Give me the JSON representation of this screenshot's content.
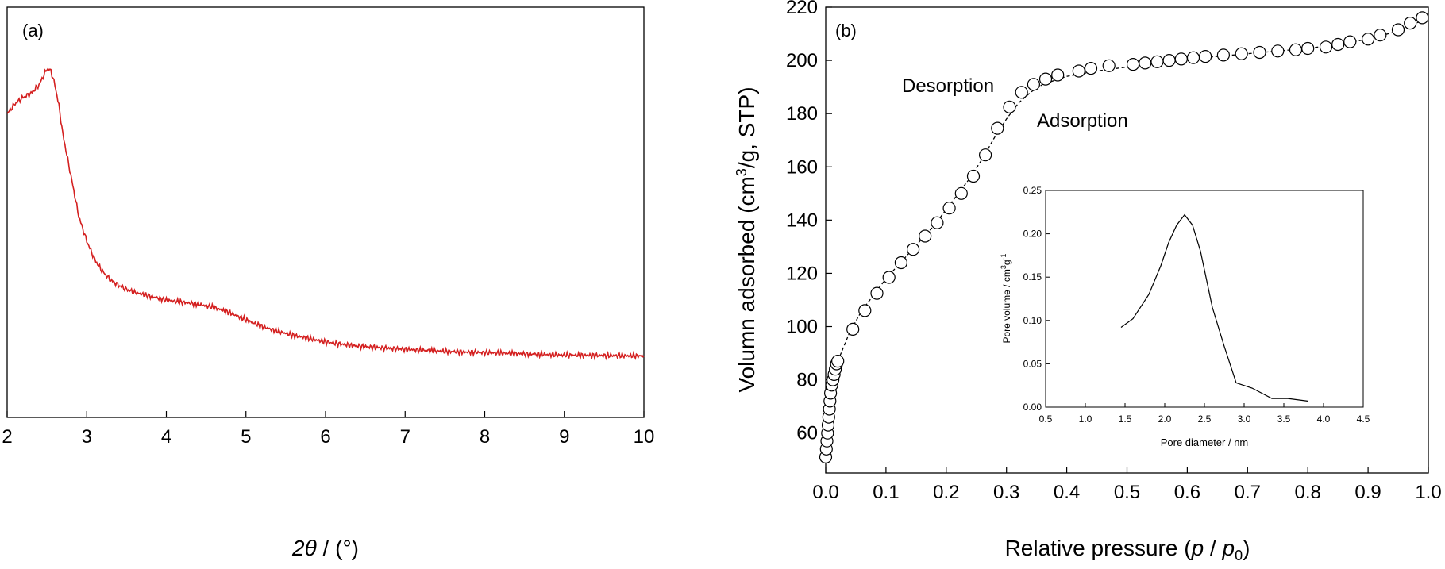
{
  "chart_data": [
    {
      "type": "line",
      "panel_label": "(a)",
      "xlabel_math": "2θ",
      "xlabel_text": " / (°)",
      "ylabel": "",
      "xlim": [
        2,
        10
      ],
      "x_ticks": [
        "2",
        "3",
        "4",
        "5",
        "6",
        "7",
        "8",
        "9",
        "10"
      ],
      "y_ticks": [],
      "line_color": "#d42020",
      "series": [
        {
          "x": [
            2.0,
            2.1,
            2.2,
            2.3,
            2.35,
            2.4,
            2.45,
            2.5,
            2.55,
            2.6,
            2.65,
            2.7,
            2.75,
            2.8,
            2.85,
            2.9,
            3.0,
            3.1,
            3.2,
            3.3,
            3.4,
            3.5,
            3.6,
            3.8,
            4.0,
            4.2,
            4.4,
            4.6,
            4.8,
            5.0,
            5.2,
            5.4,
            5.6,
            5.8,
            6.0,
            6.3,
            6.6,
            7.0,
            7.5,
            8.0,
            8.5,
            9.0,
            9.5,
            10.0
          ],
          "y": [
            0.74,
            0.765,
            0.78,
            0.79,
            0.8,
            0.81,
            0.83,
            0.85,
            0.845,
            0.81,
            0.76,
            0.69,
            0.64,
            0.59,
            0.54,
            0.49,
            0.43,
            0.385,
            0.355,
            0.335,
            0.322,
            0.312,
            0.305,
            0.295,
            0.286,
            0.281,
            0.276,
            0.268,
            0.255,
            0.238,
            0.222,
            0.21,
            0.2,
            0.192,
            0.184,
            0.176,
            0.171,
            0.166,
            0.161,
            0.158,
            0.155,
            0.152,
            0.151,
            0.15
          ]
        }
      ]
    },
    {
      "type": "scatter",
      "panel_label": "(b)",
      "xlabel": "Relative pressure (",
      "xlabel_p": "p",
      "xlabel_slash": " / ",
      "xlabel_p0": "p",
      "xlabel_sub": "0",
      "xlabel_close": ")",
      "ylabel_pre": "Volumn adsorbed (cm",
      "ylabel_sup": "3",
      "ylabel_post": "/g, STP)",
      "xlim": [
        0.0,
        1.0
      ],
      "ylim": [
        45,
        220
      ],
      "x_ticks": [
        "0.0",
        "0.1",
        "0.2",
        "0.3",
        "0.4",
        "0.5",
        "0.6",
        "0.7",
        "0.8",
        "0.9",
        "1.0"
      ],
      "y_ticks": [
        "60",
        "80",
        "100",
        "120",
        "140",
        "160",
        "180",
        "200",
        "220"
      ],
      "annotations": [
        "Desorption",
        "Adsorption"
      ],
      "series": [
        {
          "name": "Adsorption",
          "style": "dotted-line",
          "x": [
            0.0,
            0.002,
            0.005,
            0.01,
            0.015,
            0.02,
            0.04,
            0.06,
            0.08,
            0.1,
            0.12,
            0.14,
            0.16,
            0.18,
            0.2,
            0.22,
            0.24,
            0.26,
            0.28,
            0.3,
            0.32,
            0.34,
            0.36,
            0.4,
            0.45,
            0.5,
            0.55,
            0.6,
            0.65,
            0.7,
            0.75,
            0.8,
            0.85,
            0.9,
            0.95,
            0.99
          ],
          "y": [
            50,
            60,
            70,
            78,
            83,
            87,
            98,
            106,
            112,
            118,
            123,
            128,
            133,
            138,
            144,
            150,
            156,
            163,
            171,
            178,
            184,
            188,
            191,
            194,
            196,
            197.5,
            199,
            200.5,
            201.5,
            202.5,
            203.5,
            204.5,
            206,
            208,
            211,
            215
          ]
        },
        {
          "name": "Desorption",
          "style": "open-circles",
          "x": [
            0.0,
            0.001,
            0.002,
            0.003,
            0.004,
            0.005,
            0.006,
            0.007,
            0.008,
            0.01,
            0.012,
            0.014,
            0.016,
            0.018,
            0.02,
            0.045,
            0.065,
            0.085,
            0.105,
            0.125,
            0.145,
            0.165,
            0.185,
            0.205,
            0.225,
            0.245,
            0.265,
            0.285,
            0.305,
            0.325,
            0.345,
            0.365,
            0.385,
            0.42,
            0.44,
            0.47,
            0.51,
            0.53,
            0.55,
            0.57,
            0.59,
            0.61,
            0.63,
            0.66,
            0.69,
            0.72,
            0.75,
            0.78,
            0.8,
            0.83,
            0.85,
            0.87,
            0.9,
            0.92,
            0.95,
            0.97,
            0.99
          ],
          "y": [
            51,
            54,
            57,
            60,
            63,
            66,
            69,
            72,
            75,
            78,
            80,
            82,
            84,
            86,
            87,
            99,
            106,
            112.5,
            118.5,
            124,
            129,
            134,
            139,
            144.5,
            150,
            156.5,
            164.5,
            174.5,
            182.5,
            188,
            191,
            193,
            194.5,
            196,
            197,
            198,
            198.5,
            199,
            199.5,
            200,
            200.5,
            201,
            201.5,
            202,
            202.5,
            203,
            203.5,
            204,
            204.5,
            205,
            206,
            207,
            208,
            209.5,
            211.5,
            214,
            216
          ]
        }
      ],
      "inset": {
        "type": "line",
        "xlabel": "Pore  diameter / nm",
        "ylabel_pre": "Pore volume / cm",
        "ylabel_sup1": "3",
        "ylabel_mid": "g",
        "ylabel_sup2": "-1",
        "xlim": [
          0.5,
          4.5
        ],
        "ylim": [
          0.0,
          0.25
        ],
        "x_ticks": [
          "0.5",
          "1.0",
          "1.5",
          "2.0",
          "2.5",
          "3.0",
          "3.5",
          "4.0",
          "4.5"
        ],
        "y_ticks": [
          "0.00",
          "0.05",
          "0.10",
          "0.15",
          "0.20",
          "0.25"
        ],
        "series": [
          {
            "x": [
              1.45,
              1.6,
              1.8,
              1.95,
              2.05,
              2.15,
              2.25,
              2.35,
              2.45,
              2.6,
              2.75,
              2.9,
              3.1,
              3.35,
              3.55,
              3.8
            ],
            "y": [
              0.092,
              0.102,
              0.13,
              0.163,
              0.19,
              0.21,
              0.222,
              0.21,
              0.18,
              0.115,
              0.07,
              0.028,
              0.022,
              0.01,
              0.01,
              0.007
            ]
          }
        ]
      }
    }
  ]
}
